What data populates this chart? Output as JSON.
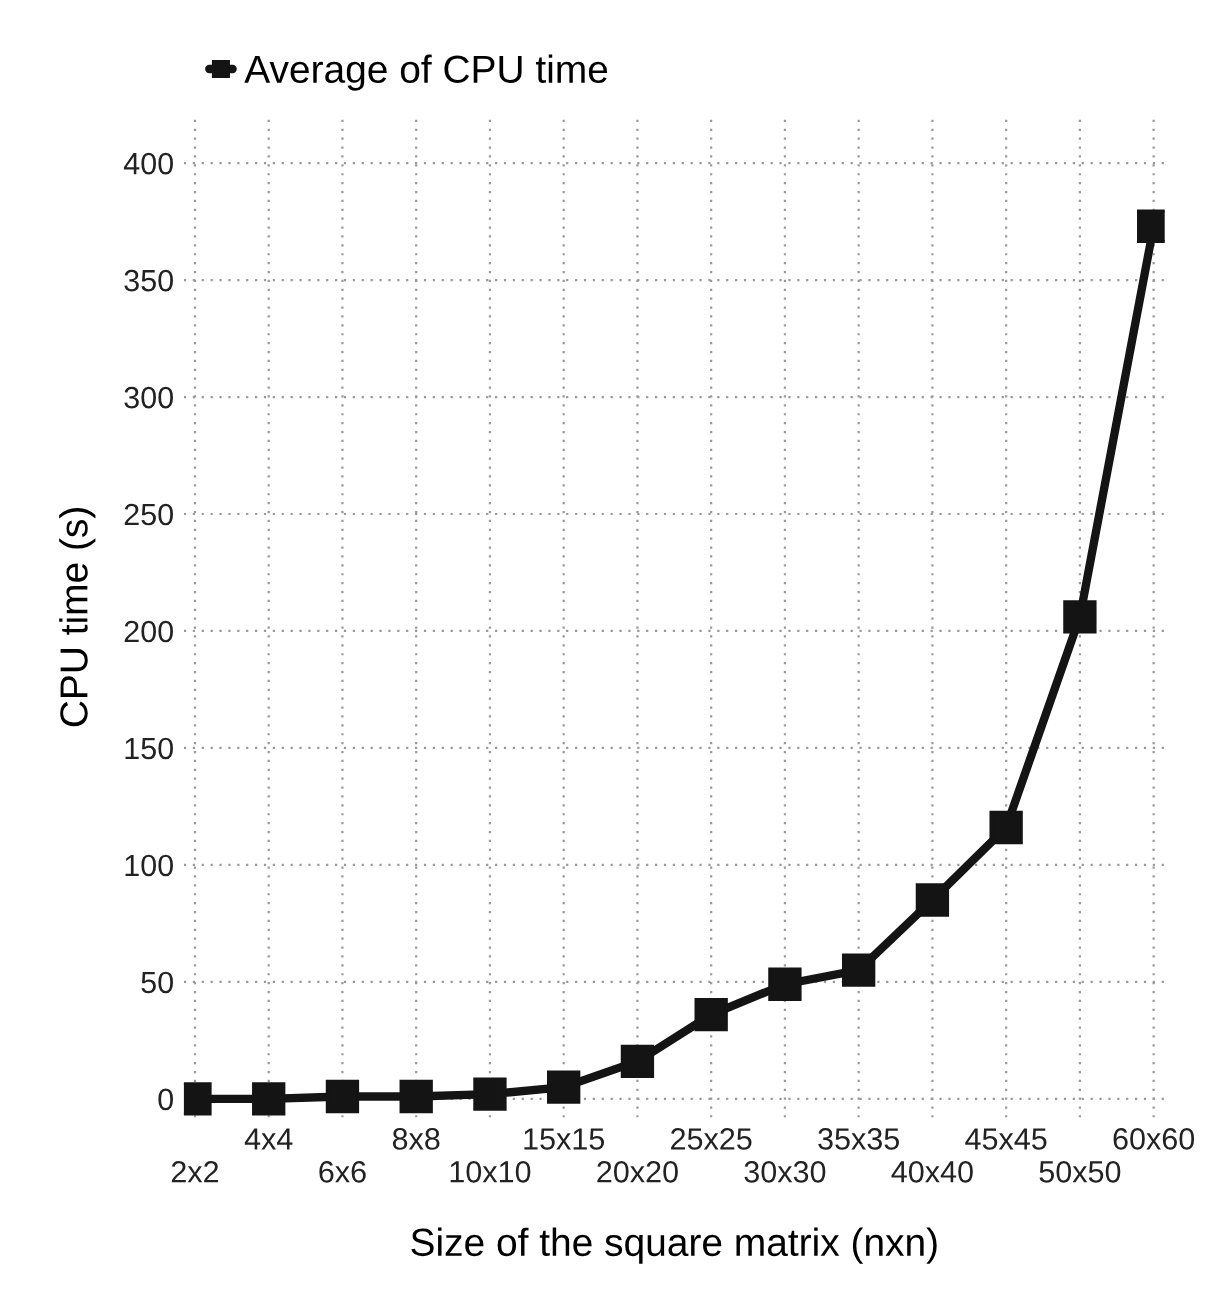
{
  "chart_data": {
    "type": "line",
    "xlabel": "Size of the square matrix (nxn)",
    "ylabel": "CPU time (s)",
    "categories": [
      "2x2",
      "4x4",
      "6x6",
      "8x8",
      "10x10",
      "15x15",
      "20x20",
      "25x25",
      "30x30",
      "35x35",
      "40x40",
      "45x45",
      "50x50",
      "60x60"
    ],
    "series": [
      {
        "name": "Average of CPU time",
        "color": "#141414",
        "values": [
          0,
          0,
          1,
          1,
          2,
          5,
          16,
          36,
          49,
          55,
          85,
          116,
          206,
          373
        ]
      }
    ],
    "ylim": [
      -8,
      420
    ],
    "yticks": [
      0,
      50,
      100,
      150,
      200,
      250,
      300,
      350,
      400
    ],
    "grid": true,
    "legend": "top left",
    "marker": "square",
    "line_style": "solid"
  }
}
